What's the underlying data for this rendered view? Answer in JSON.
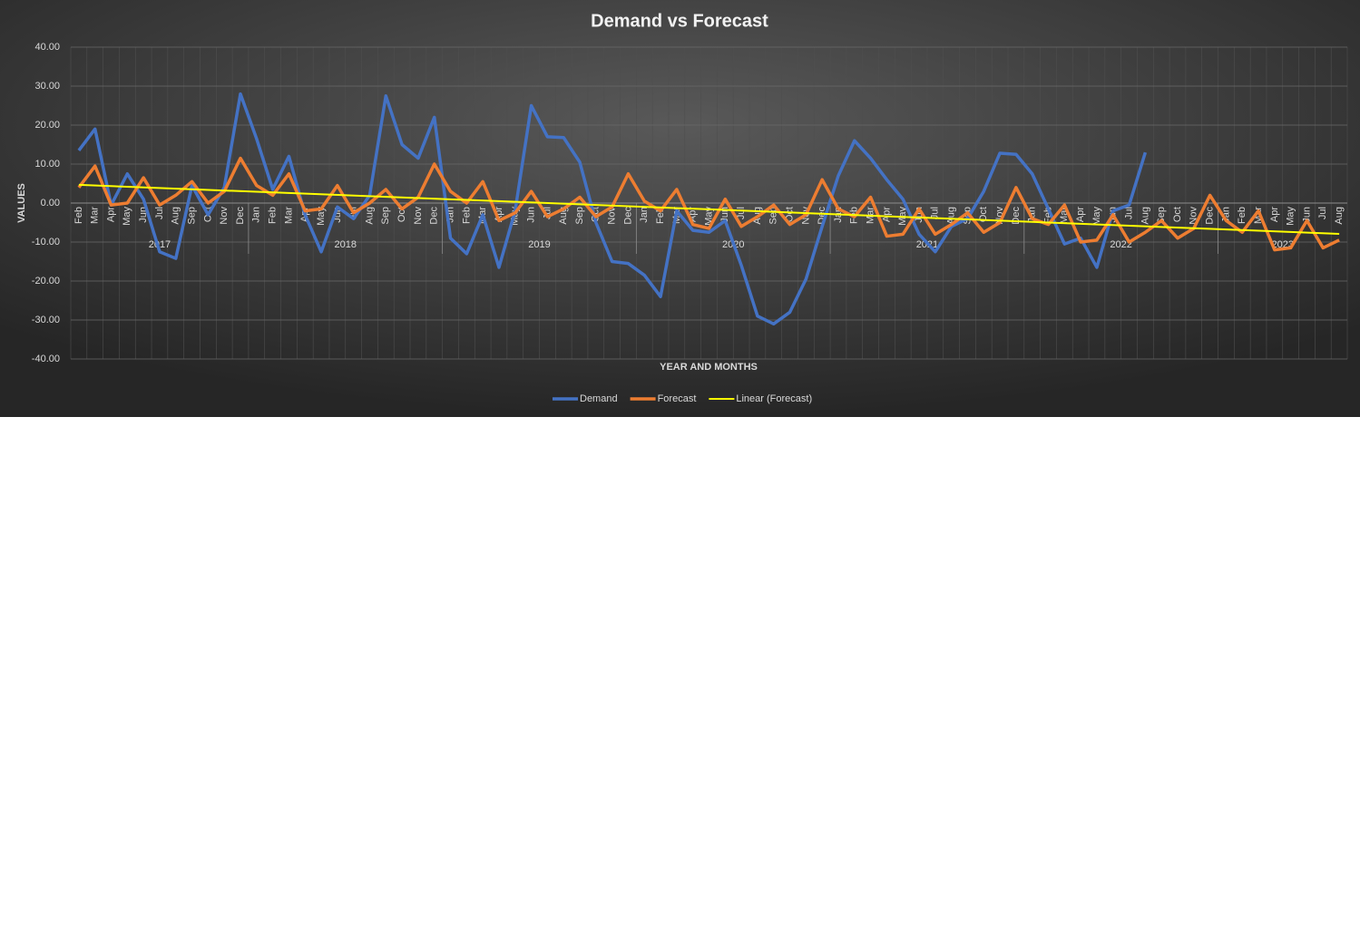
{
  "chart_data": {
    "type": "line",
    "title": "Demand vs Forecast",
    "x_label": "YEAR AND MONTHS",
    "y_label": "VALUES",
    "categories": [
      {
        "label": "Feb",
        "group": "2017"
      },
      {
        "label": "Mar",
        "group": "2017"
      },
      {
        "label": "Apr",
        "group": "2017"
      },
      {
        "label": "May",
        "group": "2017"
      },
      {
        "label": "Jun",
        "group": "2017"
      },
      {
        "label": "Jul",
        "group": "2017"
      },
      {
        "label": "Aug",
        "group": "2017"
      },
      {
        "label": "Sep",
        "group": "2017"
      },
      {
        "label": "Oct",
        "group": "2017"
      },
      {
        "label": "Nov",
        "group": "2017"
      },
      {
        "label": "Dec",
        "group": "2017"
      },
      {
        "label": "Jan",
        "group": "2018"
      },
      {
        "label": "Feb",
        "group": "2018"
      },
      {
        "label": "Mar",
        "group": "2018"
      },
      {
        "label": "Apr",
        "group": "2018"
      },
      {
        "label": "May",
        "group": "2018"
      },
      {
        "label": "Jun",
        "group": "2018"
      },
      {
        "label": "Jul",
        "group": "2018"
      },
      {
        "label": "Aug",
        "group": "2018"
      },
      {
        "label": "Sep",
        "group": "2018"
      },
      {
        "label": "Oct",
        "group": "2018"
      },
      {
        "label": "Nov",
        "group": "2018"
      },
      {
        "label": "Dec",
        "group": "2018"
      },
      {
        "label": "Jan",
        "group": "2019"
      },
      {
        "label": "Feb",
        "group": "2019"
      },
      {
        "label": "Mar",
        "group": "2019"
      },
      {
        "label": "Apr",
        "group": "2019"
      },
      {
        "label": "May",
        "group": "2019"
      },
      {
        "label": "Jun",
        "group": "2019"
      },
      {
        "label": "Jul",
        "group": "2019"
      },
      {
        "label": "Aug",
        "group": "2019"
      },
      {
        "label": "Sep",
        "group": "2019"
      },
      {
        "label": "Oct",
        "group": "2019"
      },
      {
        "label": "Nov",
        "group": "2019"
      },
      {
        "label": "Dec",
        "group": "2019"
      },
      {
        "label": "Jan",
        "group": "2020"
      },
      {
        "label": "Feb",
        "group": "2020"
      },
      {
        "label": "Mar",
        "group": "2020"
      },
      {
        "label": "Apr",
        "group": "2020"
      },
      {
        "label": "May",
        "group": "2020"
      },
      {
        "label": "Jun",
        "group": "2020"
      },
      {
        "label": "Jul",
        "group": "2020"
      },
      {
        "label": "Aug",
        "group": "2020"
      },
      {
        "label": "Sep",
        "group": "2020"
      },
      {
        "label": "Oct",
        "group": "2020"
      },
      {
        "label": "Nov",
        "group": "2020"
      },
      {
        "label": "Dec",
        "group": "2020"
      },
      {
        "label": "Jan",
        "group": "2021"
      },
      {
        "label": "Feb",
        "group": "2021"
      },
      {
        "label": "Mar",
        "group": "2021"
      },
      {
        "label": "Apr",
        "group": "2021"
      },
      {
        "label": "May",
        "group": "2021"
      },
      {
        "label": "Jun",
        "group": "2021"
      },
      {
        "label": "Jul",
        "group": "2021"
      },
      {
        "label": "Aug",
        "group": "2021"
      },
      {
        "label": "Sep",
        "group": "2021"
      },
      {
        "label": "Oct",
        "group": "2021"
      },
      {
        "label": "Nov",
        "group": "2021"
      },
      {
        "label": "Dec",
        "group": "2021"
      },
      {
        "label": "Jan",
        "group": "2022"
      },
      {
        "label": "Feb",
        "group": "2022"
      },
      {
        "label": "Mar",
        "group": "2022"
      },
      {
        "label": "Apr",
        "group": "2022"
      },
      {
        "label": "May",
        "group": "2022"
      },
      {
        "label": "Jun",
        "group": "2022"
      },
      {
        "label": "Jul",
        "group": "2022"
      },
      {
        "label": "Aug",
        "group": "2022"
      },
      {
        "label": "Sep",
        "group": "2022"
      },
      {
        "label": "Oct",
        "group": "2022"
      },
      {
        "label": "Nov",
        "group": "2022"
      },
      {
        "label": "Dec",
        "group": "2022"
      },
      {
        "label": "Jan",
        "group": "2023"
      },
      {
        "label": "Feb",
        "group": "2023"
      },
      {
        "label": "Mar",
        "group": "2023"
      },
      {
        "label": "Apr",
        "group": "2023"
      },
      {
        "label": "May",
        "group": "2023"
      },
      {
        "label": "Jun",
        "group": "2023"
      },
      {
        "label": "Jul",
        "group": "2023"
      },
      {
        "label": "Aug",
        "group": "2023"
      }
    ],
    "series": [
      {
        "name": "Demand",
        "color": "#4472c4",
        "values": [
          13.5,
          19,
          -0.5,
          7.5,
          1,
          -12.5,
          -14.2,
          4.5,
          -3,
          4,
          28,
          16.5,
          3.5,
          12,
          -3,
          -12.5,
          -1,
          -4,
          2,
          27.5,
          15,
          11.5,
          22,
          -9,
          -13,
          -3,
          -16.5,
          -2,
          25,
          17,
          16.8,
          10.5,
          -5,
          -15,
          -15.5,
          -18.5,
          -24,
          -2,
          -7,
          -7.5,
          -4.5,
          -16,
          -29,
          -31,
          -28,
          -19.5,
          -6,
          7,
          16,
          11.5,
          6,
          1,
          -8,
          -12.5,
          -6,
          -4,
          3,
          12.8,
          12.5,
          7.5,
          -1.5,
          -10.5,
          -9,
          -16.5,
          -2,
          -0.5,
          13,
          null,
          null,
          null,
          null,
          null,
          null,
          null,
          null,
          null,
          null,
          null,
          null
        ]
      },
      {
        "name": "Forecast",
        "color": "#ed7d31",
        "values": [
          4,
          9.5,
          -0.5,
          0,
          6.5,
          -0.5,
          2,
          5.5,
          0,
          3,
          11.5,
          4.5,
          2,
          7.5,
          -2,
          -1.5,
          4.5,
          -2.5,
          0,
          3.5,
          -1.5,
          1.5,
          10,
          3,
          0,
          5.5,
          -4.5,
          -2.5,
          3,
          -3.5,
          -1.5,
          1.5,
          -3.5,
          -1,
          7.5,
          0.5,
          -2,
          3.5,
          -5.5,
          -6.5,
          1,
          -6,
          -3.5,
          -0.5,
          -5.5,
          -3,
          6,
          -1.5,
          -3.5,
          1.5,
          -8.5,
          -8,
          -1.5,
          -8,
          -5.5,
          -2.5,
          -7.5,
          -5,
          4,
          -4,
          -5.5,
          -0.5,
          -10,
          -9.5,
          -3,
          -10,
          -7.5,
          -4.5,
          -9,
          -6.5,
          2,
          -4.5,
          -7.5,
          -2,
          -12,
          -11.5,
          -4.5,
          -11.5,
          -9.5
        ],
        "trendline": {
          "name": "Linear (Forecast)",
          "color": "#ffff00"
        }
      }
    ],
    "ylim": [
      -40,
      40
    ],
    "yticks": [
      {
        "value": -40,
        "label": "-40.00"
      },
      {
        "value": -30,
        "label": "-30.00"
      },
      {
        "value": -20,
        "label": "-20.00"
      },
      {
        "value": -10,
        "label": "-10.00"
      },
      {
        "value": 0,
        "label": "0.00"
      },
      {
        "value": 10,
        "label": "10.00"
      },
      {
        "value": 20,
        "label": "20.00"
      },
      {
        "value": 30,
        "label": "30.00"
      },
      {
        "value": 40,
        "label": "40.00"
      }
    ],
    "grid": true,
    "legend": "bottom"
  }
}
